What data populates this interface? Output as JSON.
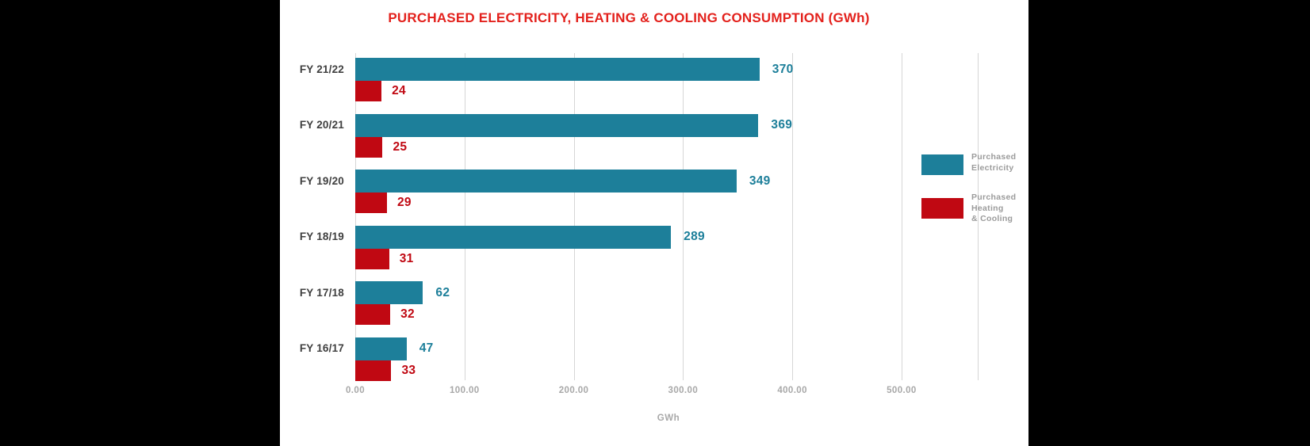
{
  "panel_bg": "#ffffff",
  "page_bg": "#000000",
  "title": "PURCHASED ELECTRICITY, HEATING & COOLING CONSUMPTION (GWh)",
  "colors": {
    "title_red": "#e3211c",
    "electricity_teal": "#1d7f9a",
    "heating_red": "#c00812",
    "grid_gray": "#d6d6d6",
    "tick_gray": "#a8a8a8",
    "category_dark": "#3f3f3f",
    "legend_gray": "#9b9b9b"
  },
  "chart_data": {
    "type": "bar",
    "orientation": "horizontal",
    "title": "PURCHASED ELECTRICITY, HEATING & COOLING CONSUMPTION (GWh)",
    "categories": [
      "FY 21/22",
      "FY 20/21",
      "FY 19/20",
      "FY 18/19",
      "FY 17/18",
      "FY 16/17"
    ],
    "series": [
      {
        "name": "Purchased Electricity",
        "color": "#1d7f9a",
        "values": [
          370,
          369,
          349,
          289,
          62,
          47
        ]
      },
      {
        "name": "Purchased Heating & Cooling",
        "color": "#c00812",
        "values": [
          24,
          25,
          29,
          31,
          32,
          33
        ]
      }
    ],
    "xlabel": "GWh",
    "x_ticks": [
      "0.00",
      "100.00",
      "200.00",
      "300.00",
      "400.00",
      "500.00"
    ],
    "x_tick_values": [
      0,
      100,
      200,
      300,
      400,
      500
    ],
    "xlim": [
      0,
      570
    ],
    "grid": true,
    "data_labels": true,
    "legend_position": "right"
  },
  "legend": {
    "items": [
      {
        "name": "Purchased Electricity",
        "color": "#1d7f9a",
        "label_lines": [
          "Purchased",
          "Electricity"
        ]
      },
      {
        "name": "Purchased Heating & Cooling",
        "color": "#c00812",
        "label_lines": [
          "Purchased",
          "Heating",
          "& Cooling"
        ]
      }
    ]
  },
  "x_axis": {
    "label": "GWh"
  }
}
